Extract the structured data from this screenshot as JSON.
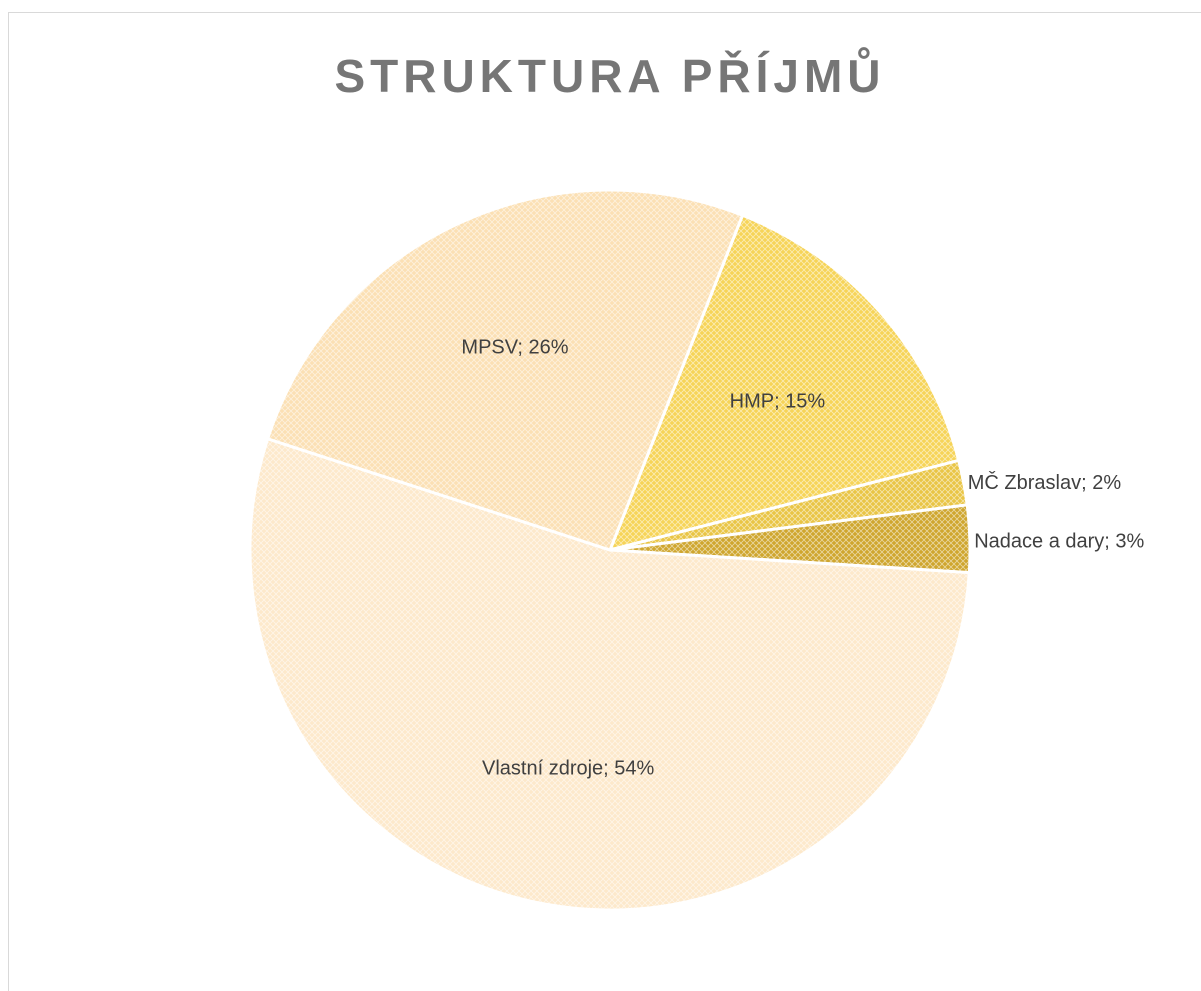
{
  "chart_data": {
    "type": "pie",
    "title": "STRUKTURA PŘÍJMŮ",
    "categories": [
      "HMP",
      "MČ Zbraslav",
      "Nadace a dary",
      "Vlastní zdroje",
      "MPSV"
    ],
    "values": [
      15,
      2,
      3,
      54,
      26
    ],
    "value_labels": [
      "HMP; 15%",
      "MČ Zbraslav; 2%",
      "Nadace a dary; 3%",
      "Vlastní zdroje; 54%",
      "MPSV; 26%"
    ],
    "colors": [
      "#f6d458",
      "#e9c545",
      "#cfa62e",
      "#fde9cb",
      "#fbe0b4"
    ]
  }
}
